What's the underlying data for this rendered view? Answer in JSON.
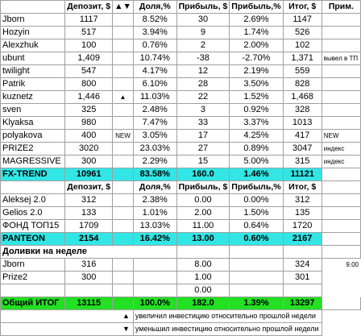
{
  "header1": {
    "col1": "Депозит, $",
    "arrows": "▲▼",
    "col3": "Доля,%",
    "col4": "Прибыль, $",
    "col5": "Прибыль,%",
    "col6": "Итог, $",
    "col7": "Прим."
  },
  "rows1": [
    {
      "name": "Jborn",
      "dep": "1117",
      "mark": "",
      "share": "8.52%",
      "profit": "30",
      "pct": "2.69%",
      "total": "1147",
      "note": ""
    },
    {
      "name": "Hozyin",
      "dep": "517",
      "mark": "",
      "share": "3.94%",
      "profit": "9",
      "pct": "1.74%",
      "total": "526",
      "note": ""
    },
    {
      "name": "Alexzhuk",
      "dep": "100",
      "mark": "",
      "share": "0.76%",
      "profit": "2",
      "pct": "2.00%",
      "total": "102",
      "note": ""
    },
    {
      "name": "ubunt",
      "dep": "1,409",
      "mark": "",
      "share": "10.74%",
      "profit": "-38",
      "pct": "-2.70%",
      "total": "1,371",
      "note": "вывел в ТП"
    },
    {
      "name": "twilight",
      "dep": "547",
      "mark": "",
      "share": "4.17%",
      "profit": "12",
      "pct": "2.19%",
      "total": "559",
      "note": ""
    },
    {
      "name": "Patrik",
      "dep": "800",
      "mark": "",
      "share": "6.10%",
      "profit": "28",
      "pct": "3.50%",
      "total": "828",
      "note": ""
    },
    {
      "name": "kuznetz",
      "dep": "1,446",
      "mark": "▲",
      "share": "11.03%",
      "profit": "22",
      "pct": "1.52%",
      "total": "1,468",
      "note": ""
    },
    {
      "name": "sven",
      "dep": "325",
      "mark": "",
      "share": "2.48%",
      "profit": "3",
      "pct": "0.92%",
      "total": "328",
      "note": ""
    },
    {
      "name": "Klyaksa",
      "dep": "980",
      "mark": "",
      "share": "7.47%",
      "profit": "33",
      "pct": "3.37%",
      "total": "1013",
      "note": ""
    },
    {
      "name": "polyakova",
      "dep": "400",
      "mark": "NEW",
      "share": "3.05%",
      "profit": "17",
      "pct": "4.25%",
      "total": "417",
      "note": "NEW"
    },
    {
      "name": "PRIZE2",
      "dep": "3020",
      "mark": "",
      "share": "23.03%",
      "profit": "27",
      "pct": "0.89%",
      "total": "3047",
      "note": "индекс"
    },
    {
      "name": "MAGRESSIVE",
      "dep": "300",
      "mark": "",
      "share": "2.29%",
      "profit": "15",
      "pct": "5.00%",
      "total": "315",
      "note": "индекс"
    }
  ],
  "fxtrend": {
    "name": "FX-TREND",
    "dep": "10961",
    "share": "83.58%",
    "profit": "160.0",
    "pct": "1.46%",
    "total": "11121"
  },
  "header2": {
    "col1": "Депозит, $",
    "col3": "Доля,%",
    "col4": "Прибыль, $",
    "col5": "Прибыль,%",
    "col6": "Итог, $"
  },
  "rows2": [
    {
      "name": "Aleksej 2.0",
      "dep": "312",
      "share": "2.38%",
      "profit": "0.00",
      "pct": "0.00%",
      "total": "312"
    },
    {
      "name": "Gelios 2.0",
      "dep": "133",
      "share": "1.01%",
      "profit": "2.00",
      "pct": "1.50%",
      "total": "135"
    },
    {
      "name": "ФОНД ТОП15",
      "dep": "1709",
      "share": "13.03%",
      "profit": "11.00",
      "pct": "0.64%",
      "total": "1720"
    }
  ],
  "panteon": {
    "name": "PANTEON",
    "dep": "2154",
    "share": "16.42%",
    "profit": "13.00",
    "pct": "0.60%",
    "total": "2167"
  },
  "section3_title": "Доливки на неделе",
  "rows3": [
    {
      "name": "Jborn",
      "dep": "316",
      "profit": "8.00",
      "total": "324",
      "note": "9.00"
    },
    {
      "name": "Prize2",
      "dep": "300",
      "profit": "1.00",
      "total": "301",
      "note": ""
    },
    {
      "name": "",
      "dep": "",
      "profit": "0.00",
      "total": "",
      "note": ""
    }
  ],
  "total": {
    "name": "Общий ИТОГ",
    "dep": "13115",
    "share": "100.0%",
    "profit": "182.0",
    "pct": "1.39%",
    "total": "13297"
  },
  "legend": [
    {
      "symbol": "▲",
      "text": "увеличил инвестицию относительно прошлой недели"
    },
    {
      "symbol": "▼",
      "text": "уменьшил инвестицию относительно прошлой недели"
    }
  ],
  "colors": {
    "cyan": "#33e6e6",
    "green": "#22e022"
  }
}
